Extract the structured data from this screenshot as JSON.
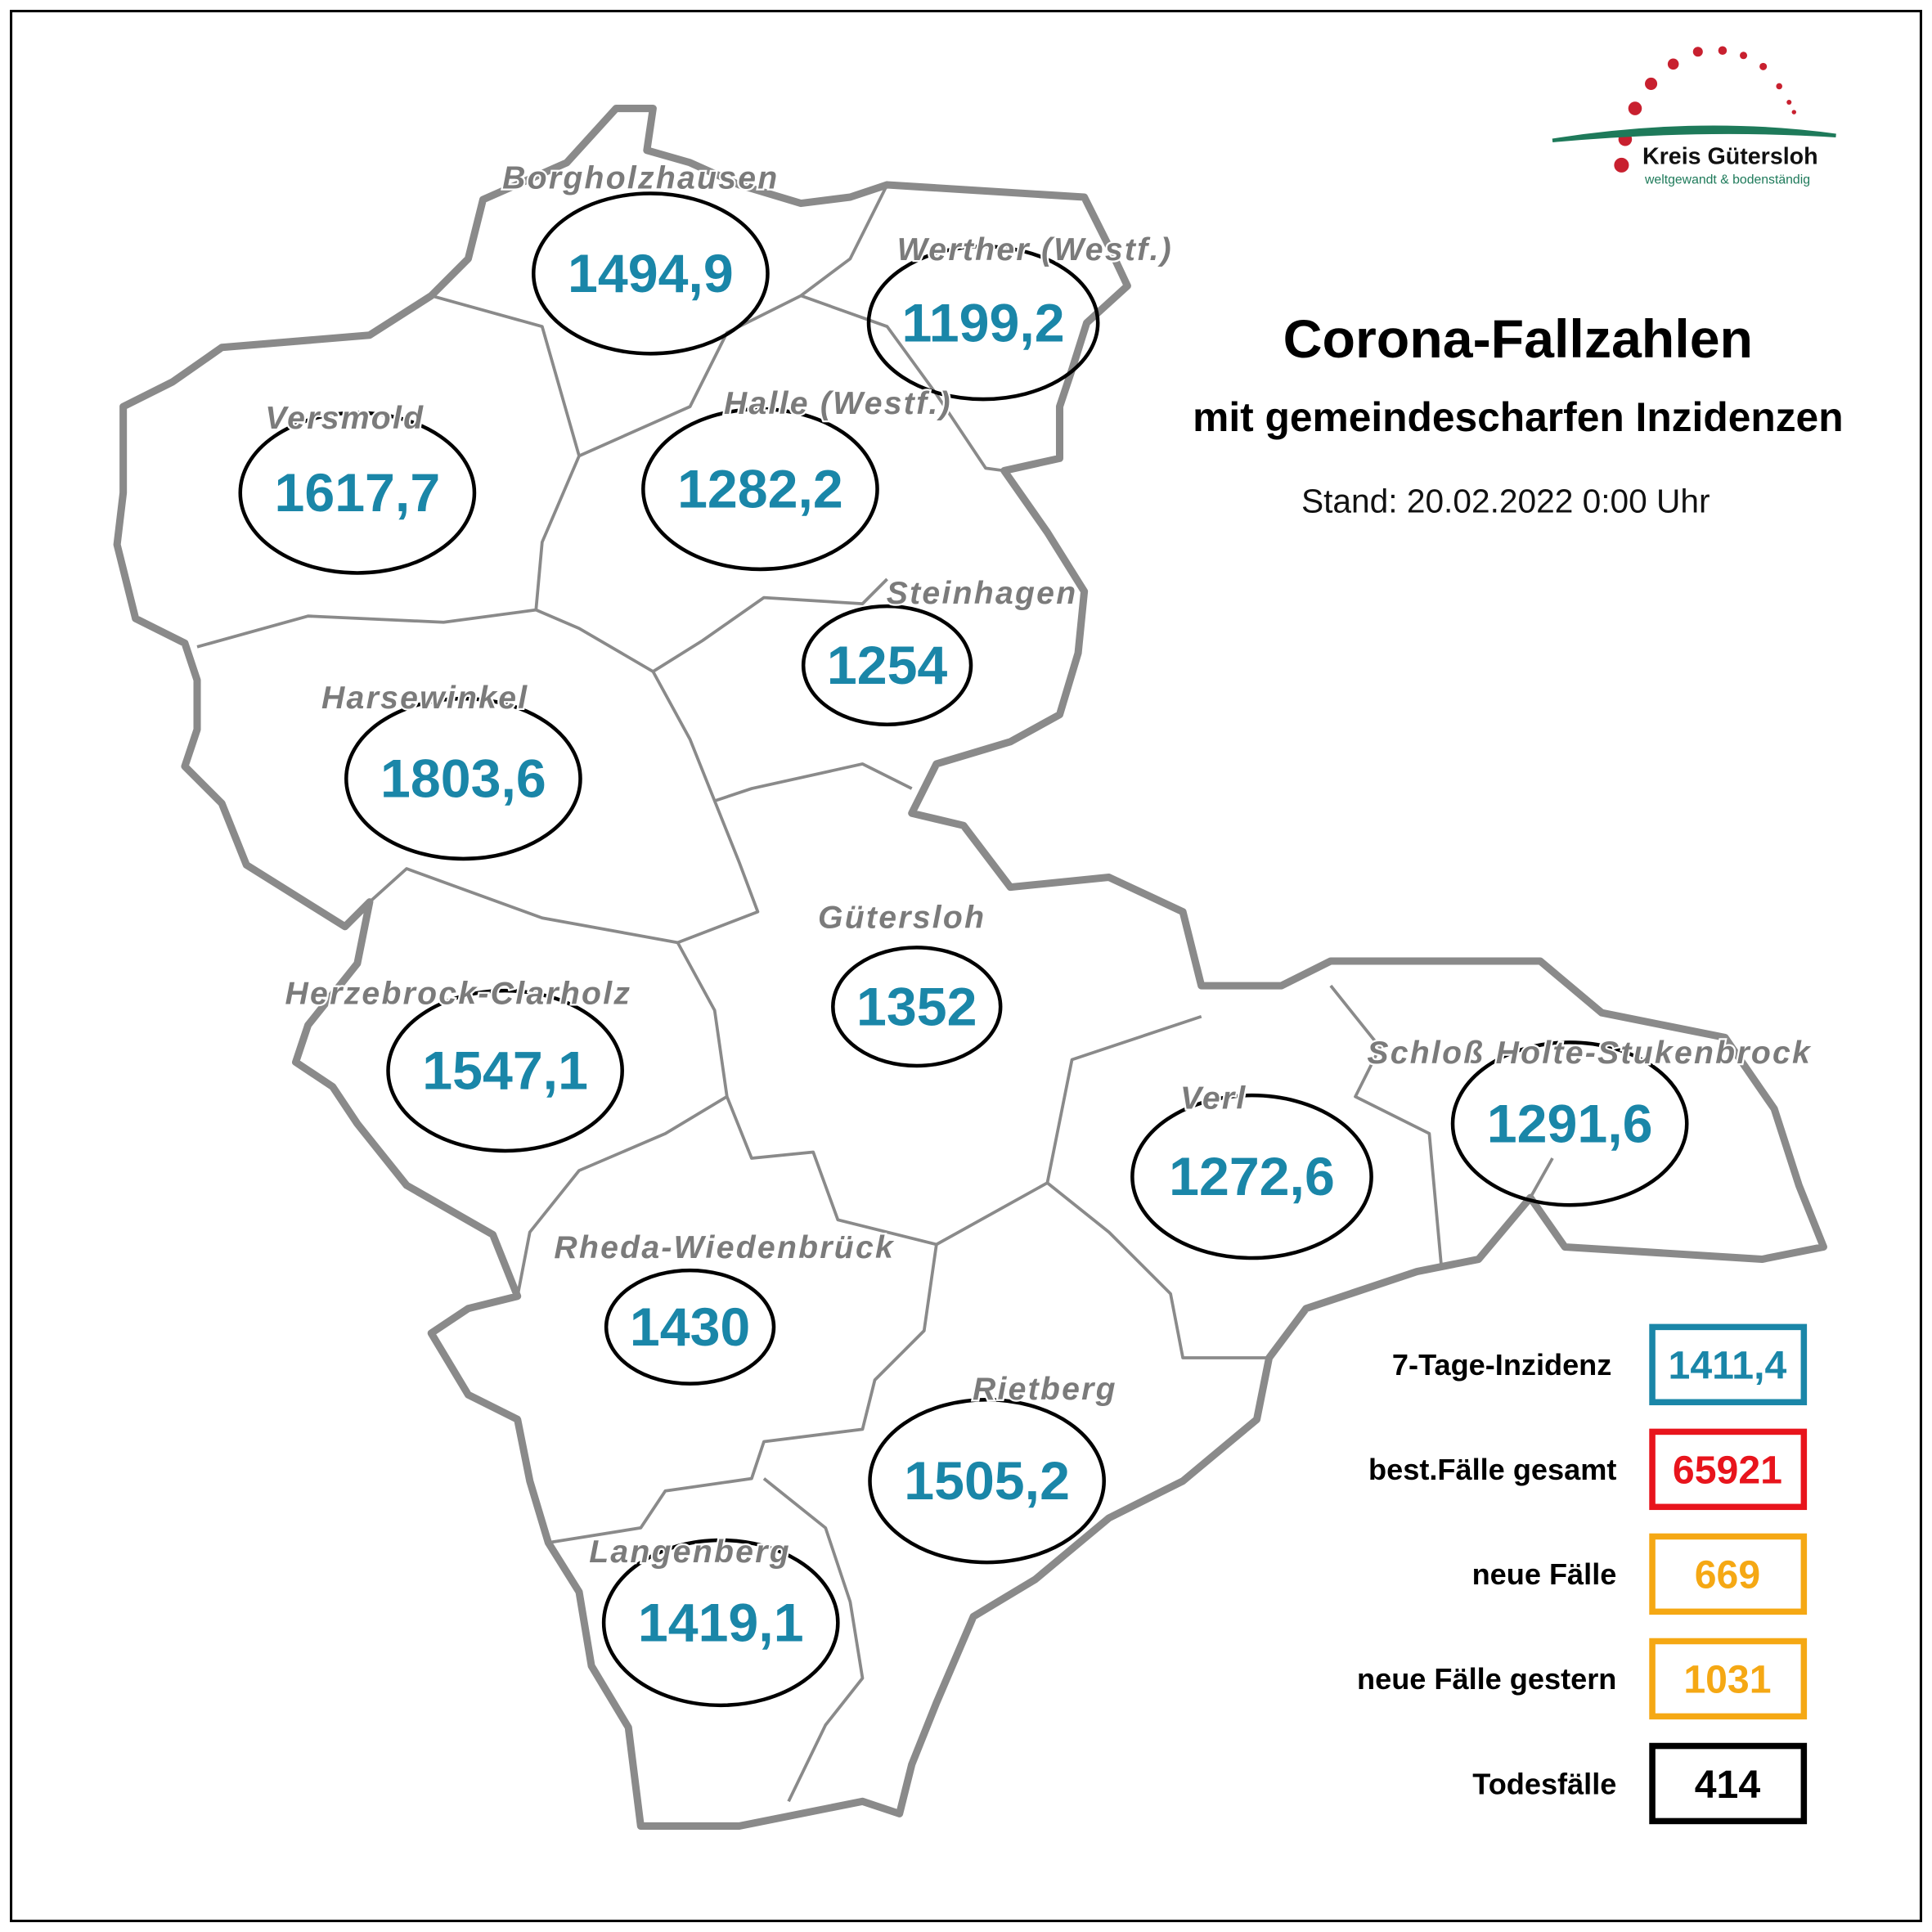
{
  "title": "Corona-Fallzahlen",
  "subtitle": "mit gemeindescharfen Inzidenzen",
  "stand": "Stand: 20.02.2022 0:00 Uhr",
  "logo": {
    "name": "Kreis Gütersloh",
    "slogan": "weltgewandt & bodenständig",
    "colors": {
      "dots": "#c8202f",
      "arc": "#1e7a5a"
    }
  },
  "colors": {
    "incidence_value": "#1a86a8",
    "municipality_label": "#7b7b7b",
    "border": "#8a8a8a"
  },
  "municipalities": [
    {
      "name": "Borgholzhausen",
      "incidence": "1494,9"
    },
    {
      "name": "Werther (Westf.)",
      "incidence": "1199,2"
    },
    {
      "name": "Versmold",
      "incidence": "1617,7"
    },
    {
      "name": "Halle (Westf.)",
      "incidence": "1282,2"
    },
    {
      "name": "Steinhagen",
      "incidence": "1254"
    },
    {
      "name": "Harsewinkel",
      "incidence": "1803,6"
    },
    {
      "name": "Gütersloh",
      "incidence": "1352"
    },
    {
      "name": "Herzebrock-Clarholz",
      "incidence": "1547,1"
    },
    {
      "name": "Verl",
      "incidence": "1272,6"
    },
    {
      "name": "Schloß Holte-Stukenbrock",
      "incidence": "1291,6"
    },
    {
      "name": "Rheda-Wiedenbrück",
      "incidence": "1430"
    },
    {
      "name": "Rietberg",
      "incidence": "1505,2"
    },
    {
      "name": "Langenberg",
      "incidence": "1419,1"
    }
  ],
  "legend": [
    {
      "label": "7-Tage-Inzidenz",
      "value": "1411,4",
      "color": "#1a86a8"
    },
    {
      "label": "best.Fälle gesamt",
      "value": "65921",
      "color": "#e8141c"
    },
    {
      "label": "neue Fälle",
      "value": "669",
      "color": "#f5a814"
    },
    {
      "label": "neue Fälle gestern",
      "value": "1031",
      "color": "#f5a814"
    },
    {
      "label": "Todesfälle",
      "value": "414",
      "color": "#000000"
    }
  ]
}
